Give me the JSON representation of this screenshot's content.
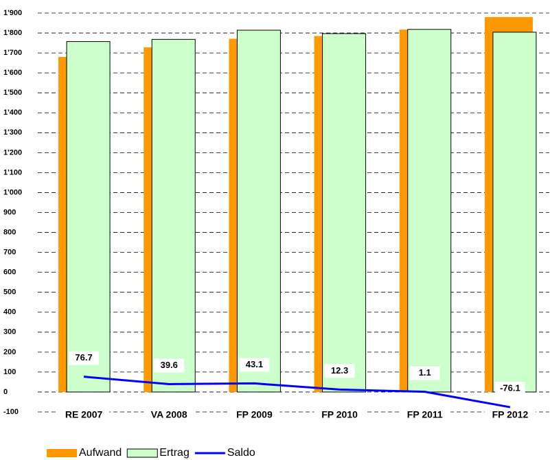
{
  "chart_data": {
    "type": "bar",
    "categories": [
      "RE 2007",
      "VA 2008",
      "FP 2009",
      "FP 2010",
      "FP 2011",
      "FP 2012"
    ],
    "series": [
      {
        "name": "Aufwand",
        "color": "#ff9900",
        "values": [
          1680,
          1728,
          1771,
          1785,
          1817,
          1880
        ]
      },
      {
        "name": "Ertrag",
        "color": "#ccffcc",
        "values": [
          1757,
          1768,
          1814,
          1797,
          1818,
          1804
        ]
      },
      {
        "name": "Saldo",
        "color": "#0000ff",
        "type": "line",
        "values": [
          76.7,
          39.6,
          43.1,
          12.3,
          1.1,
          -76.1
        ]
      }
    ],
    "ylim": [
      -100,
      1900
    ],
    "yticks": [
      -100,
      0,
      100,
      200,
      300,
      400,
      500,
      600,
      700,
      800,
      900,
      {
        "value": 1000,
        "label": "1'000"
      },
      {
        "value": 1100,
        "label": "1'100"
      },
      {
        "value": 1200,
        "label": "1'200"
      },
      {
        "value": 1300,
        "label": "1'300"
      },
      {
        "value": 1400,
        "label": "1'400"
      },
      {
        "value": 1500,
        "label": "1'500"
      },
      {
        "value": 1600,
        "label": "1'600"
      },
      {
        "value": 1700,
        "label": "1'700"
      },
      {
        "value": 1800,
        "label": "1'800"
      },
      {
        "value": 1900,
        "label": "1'900"
      }
    ],
    "grid": true
  }
}
